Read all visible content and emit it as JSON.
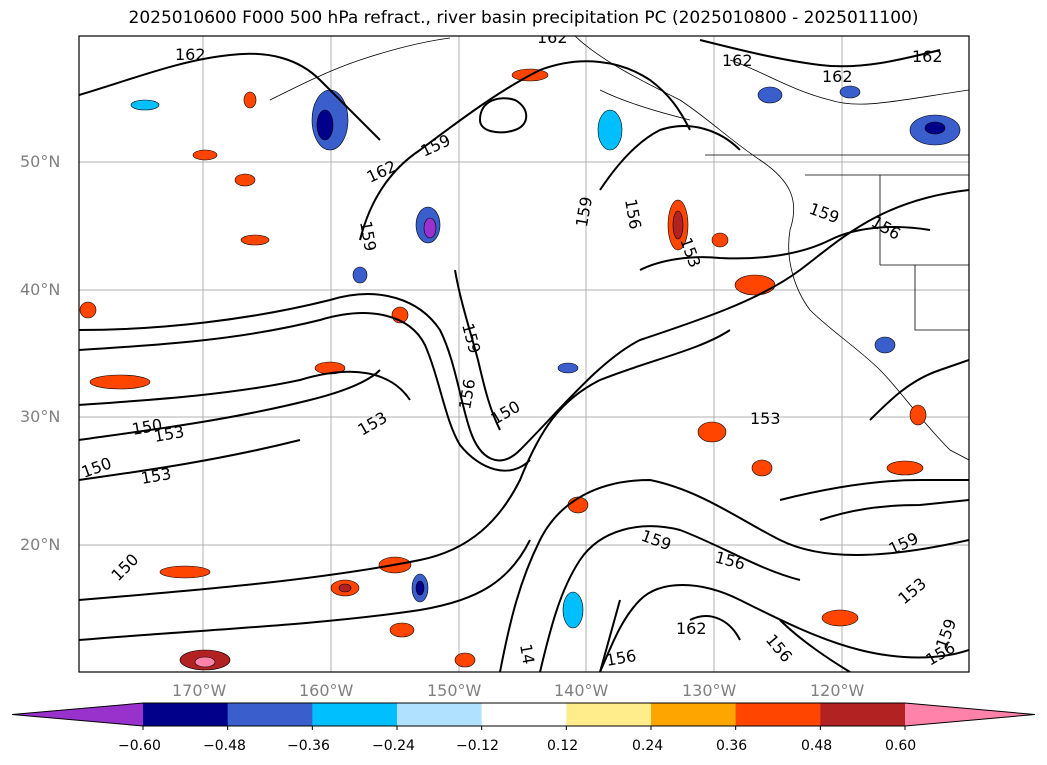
{
  "title": "2025010600 F000 500 hPa refract., river basin precipitation PC (2025010800 - 2025011100)",
  "lat_labels": [
    "50°N",
    "40°N",
    "30°N",
    "20°N"
  ],
  "lon_labels": [
    "170°W",
    "160°W",
    "150°W",
    "140°W",
    "130°W",
    "120°W"
  ],
  "contour_labels": [
    "162",
    "162",
    "162",
    "162",
    "162",
    "159",
    "162",
    "159",
    "159",
    "156",
    "156",
    "153",
    "159",
    "159",
    "156",
    "150",
    "153",
    "150",
    "153",
    "150",
    "153",
    "153",
    "150",
    "159",
    "156",
    "159",
    "153",
    "162",
    "156",
    "156",
    "156",
    "159",
    "14"
  ],
  "colorbar": {
    "colors": [
      "#9932cc",
      "#00008b",
      "#3a5fcd",
      "#00bfff",
      "#b0e2ff",
      "#ffffff",
      "#ffec8b",
      "#ffa500",
      "#ff4500",
      "#b22222",
      "#ff82ab"
    ],
    "ticks": [
      "−0.60",
      "−0.48",
      "−0.36",
      "−0.24",
      "−0.12",
      "0.12",
      "0.24",
      "0.36",
      "0.48",
      "0.60"
    ]
  }
}
